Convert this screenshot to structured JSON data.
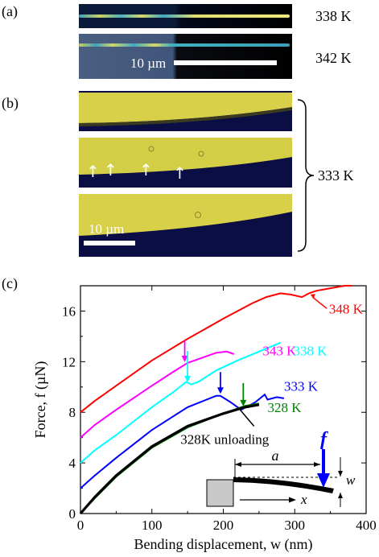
{
  "panel_a": {
    "label": "(a)",
    "images": [
      {
        "temperature": "338 K"
      },
      {
        "temperature": "342 K"
      }
    ],
    "scalebar_label": "10 µm"
  },
  "panel_b": {
    "label": "(b)",
    "temperature": "333 K",
    "scalebar_label": "10 µm"
  },
  "panel_c": {
    "label": "(c)"
  },
  "chart_data": {
    "type": "line",
    "xlabel": "Bending displacement, w (nm)",
    "ylabel": "Force, f (µN)",
    "xlim": [
      0,
      400
    ],
    "ylim": [
      0,
      18
    ],
    "xticks": [
      "0",
      "100",
      "200",
      "300",
      "400"
    ],
    "yticks": [
      "0",
      "4",
      "8",
      "12",
      "16"
    ],
    "series": [
      {
        "name": "348 K",
        "color": "#ff0000",
        "x": [
          0,
          20,
          50,
          100,
          150,
          200,
          240,
          260,
          280,
          295,
          310,
          320,
          330,
          350,
          370,
          380
        ],
        "y": [
          8,
          8.9,
          10.1,
          12.1,
          13.8,
          15.4,
          16.6,
          17.1,
          17.4,
          17.3,
          17.1,
          17.4,
          17.6,
          17.8,
          18,
          18
        ]
      },
      {
        "name": "343 K",
        "color": "#ff00ff",
        "x": [
          0,
          20,
          50,
          100,
          130,
          150,
          170,
          190,
          205,
          215
        ],
        "y": [
          6,
          7.0,
          8.2,
          10.1,
          11.2,
          11.9,
          12.3,
          12.7,
          12.8,
          12.6
        ]
      },
      {
        "name": "338 K",
        "color": "#00ffff",
        "x": [
          0,
          20,
          50,
          100,
          130,
          148,
          155,
          165,
          190,
          220,
          250,
          280
        ],
        "y": [
          4,
          5.0,
          6.2,
          8.4,
          9.6,
          10.4,
          10.2,
          10.4,
          11.3,
          12.1,
          12.8,
          13.5
        ]
      },
      {
        "name": "333 K",
        "color": "#0000ff",
        "x": [
          0,
          20,
          50,
          100,
          150,
          190,
          196,
          210,
          225,
          245,
          258,
          262,
          275,
          285
        ],
        "y": [
          2,
          3.0,
          4.4,
          6.6,
          8.4,
          9.3,
          9.3,
          8.8,
          8.2,
          8.8,
          9.4,
          9.0,
          9.2,
          9.1
        ]
      },
      {
        "name": "328 K",
        "color": "#008000",
        "x": [
          0,
          20,
          50,
          100,
          150,
          200,
          230,
          250
        ],
        "y": [
          0,
          1.2,
          2.9,
          5.2,
          6.8,
          7.9,
          8.5,
          8.7
        ]
      },
      {
        "name": "328K unloading",
        "color": "#000000",
        "x": [
          0,
          20,
          50,
          100,
          150,
          200,
          230,
          250
        ],
        "y": [
          0,
          1.3,
          3.0,
          5.3,
          6.9,
          7.9,
          8.4,
          8.6
        ]
      }
    ],
    "annotations": {
      "f_symbol": "f",
      "a_symbol": "a",
      "w_symbol": "w",
      "x_symbol": "x"
    }
  }
}
